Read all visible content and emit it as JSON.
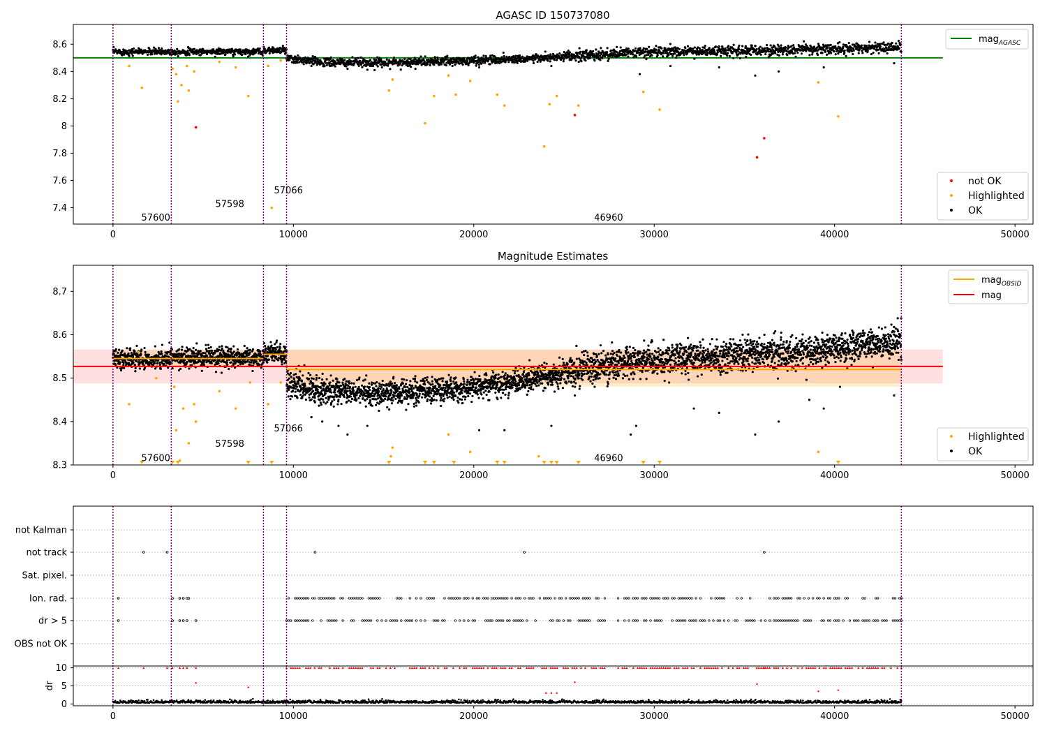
{
  "chart_data": [
    {
      "type": "scatter",
      "title": "AGASC ID 150737080",
      "xlim": [
        -2200,
        51000
      ],
      "ylim": [
        7.28,
        8.745
      ],
      "xticks": [
        0,
        10000,
        20000,
        30000,
        40000,
        50000
      ],
      "yticks": [
        7.4,
        7.6,
        7.8,
        8.0,
        8.2,
        8.4,
        8.6
      ],
      "vlines": [
        0,
        3230,
        8340,
        9620,
        43700
      ],
      "obsid_labels": [
        {
          "text": "57600",
          "x": 800,
          "y": 7.33
        },
        {
          "text": "57598",
          "x": 4900,
          "y": 7.43
        },
        {
          "text": "57066",
          "x": 8150,
          "y": 7.53
        },
        {
          "text": "46960",
          "x": 25900,
          "y": 7.33
        }
      ],
      "hline": {
        "name": "mag",
        "subscript": "AGASC",
        "value": 8.5,
        "x_range": [
          -2200,
          46000
        ],
        "color": "#008000"
      },
      "ok_band": {
        "segments": [
          {
            "x_range": [
              0,
              3230
            ],
            "center": 8.545
          },
          {
            "x_range": [
              3230,
              8340
            ],
            "center": 8.545
          },
          {
            "x_range": [
              8340,
              9620
            ],
            "center": 8.555
          },
          {
            "x_start": 9620,
            "x_end": 43700,
            "curve": [
              [
                9620,
                8.49
              ],
              [
                12000,
                8.465
              ],
              [
                15000,
                8.465
              ],
              [
                19000,
                8.475
              ],
              [
                22000,
                8.49
              ],
              [
                25000,
                8.505
              ],
              [
                27000,
                8.525
              ],
              [
                30000,
                8.545
              ],
              [
                34000,
                8.55
              ],
              [
                38000,
                8.56
              ],
              [
                41000,
                8.57
              ],
              [
                43700,
                8.58
              ]
            ]
          }
        ]
      },
      "scatter_not_ok": [
        [
          4600,
          7.99
        ],
        [
          25600,
          8.08
        ],
        [
          35700,
          7.77
        ],
        [
          36100,
          7.91
        ]
      ],
      "scatter_highlighted": [
        [
          900,
          8.44
        ],
        [
          1600,
          8.28
        ],
        [
          3300,
          8.42
        ],
        [
          3500,
          8.38
        ],
        [
          3600,
          8.18
        ],
        [
          3800,
          8.3
        ],
        [
          4100,
          8.44
        ],
        [
          4200,
          8.26
        ],
        [
          4500,
          8.4
        ],
        [
          5900,
          8.47
        ],
        [
          6800,
          8.43
        ],
        [
          7500,
          8.22
        ],
        [
          8600,
          8.44
        ],
        [
          8800,
          7.4
        ],
        [
          9300,
          8.48
        ],
        [
          15300,
          8.26
        ],
        [
          15500,
          8.34
        ],
        [
          17300,
          8.02
        ],
        [
          17800,
          8.22
        ],
        [
          18600,
          8.37
        ],
        [
          19000,
          8.23
        ],
        [
          19800,
          8.33
        ],
        [
          21300,
          8.23
        ],
        [
          21700,
          8.15
        ],
        [
          23900,
          7.85
        ],
        [
          24200,
          8.16
        ],
        [
          24600,
          8.22
        ],
        [
          25800,
          8.15
        ],
        [
          29400,
          8.25
        ],
        [
          30300,
          8.12
        ],
        [
          39100,
          8.32
        ],
        [
          40200,
          8.07
        ]
      ],
      "scatter_ok_outliers": [
        [
          11000,
          8.44
        ],
        [
          13000,
          8.42
        ],
        [
          14500,
          8.41
        ],
        [
          17800,
          8.45
        ],
        [
          20300,
          8.43
        ],
        [
          24300,
          8.44
        ],
        [
          26700,
          8.48
        ],
        [
          29200,
          8.38
        ],
        [
          30900,
          8.44
        ],
        [
          33600,
          8.43
        ],
        [
          35600,
          8.37
        ],
        [
          36900,
          8.4
        ],
        [
          39400,
          8.43
        ],
        [
          43300,
          8.46
        ]
      ],
      "legends": [
        {
          "position": "upper right",
          "entries": [
            {
              "label": "mag",
              "subscript": "AGASC",
              "kind": "line",
              "color": "#008000"
            }
          ]
        },
        {
          "position": "lower right",
          "entries": [
            {
              "label": "not OK",
              "kind": "dot",
              "color": "#ff0000"
            },
            {
              "label": "Highlighted",
              "kind": "dot",
              "color": "#ffa500"
            },
            {
              "label": "OK",
              "kind": "dot",
              "color": "#000000"
            }
          ]
        }
      ]
    },
    {
      "type": "scatter",
      "title": "Magnitude Estimates",
      "xlim": [
        -2200,
        51000
      ],
      "ylim": [
        8.3,
        8.76
      ],
      "xticks": [
        0,
        10000,
        20000,
        30000,
        40000,
        50000
      ],
      "yticks": [
        8.3,
        8.4,
        8.5,
        8.6,
        8.7
      ],
      "vlines": [
        0,
        3230,
        8340,
        9620,
        43700
      ],
      "obsid_labels": [
        {
          "text": "57600",
          "x": 800,
          "y": 8.317
        },
        {
          "text": "57598",
          "x": 4900,
          "y": 8.35
        },
        {
          "text": "57066",
          "x": 8150,
          "y": 8.385
        },
        {
          "text": "46960",
          "x": 25900,
          "y": 8.317
        }
      ],
      "mag_line": {
        "name": "mag",
        "value": 8.527,
        "band": [
          8.488,
          8.566
        ],
        "x_range": [
          -2200,
          46000
        ],
        "color": "#ff0000"
      },
      "obsid_mags": [
        {
          "x_range": [
            0,
            3230
          ],
          "value": 8.545,
          "band": [
            8.525,
            8.565
          ]
        },
        {
          "x_range": [
            3230,
            8340
          ],
          "value": 8.545,
          "band": [
            8.525,
            8.565
          ]
        },
        {
          "x_range": [
            8340,
            9620
          ],
          "value": 8.555,
          "band": [
            8.54,
            8.57
          ]
        },
        {
          "x_range": [
            9620,
            43700
          ],
          "value": 8.52,
          "band": [
            8.48,
            8.565
          ]
        }
      ],
      "ok_band": {
        "segments": [
          {
            "x_range": [
              0,
              3230
            ],
            "center": 8.545
          },
          {
            "x_range": [
              3230,
              8340
            ],
            "center": 8.547
          },
          {
            "x_range": [
              8340,
              9620
            ],
            "center": 8.557
          },
          {
            "x_start": 9620,
            "x_end": 43700,
            "curve": [
              [
                9620,
                8.485
              ],
              [
                12000,
                8.47
              ],
              [
                14000,
                8.465
              ],
              [
                17000,
                8.47
              ],
              [
                20000,
                8.48
              ],
              [
                22000,
                8.49
              ],
              [
                24000,
                8.505
              ],
              [
                26000,
                8.52
              ],
              [
                28000,
                8.535
              ],
              [
                30000,
                8.542
              ],
              [
                34000,
                8.55
              ],
              [
                38000,
                8.56
              ],
              [
                41000,
                8.572
              ],
              [
                43700,
                8.585
              ]
            ]
          }
        ]
      },
      "scatter_highlighted": [
        [
          900,
          8.44
        ],
        [
          1400,
          8.56
        ],
        [
          2400,
          8.5
        ],
        [
          3400,
          8.48
        ],
        [
          3500,
          8.38
        ],
        [
          3700,
          8.31
        ],
        [
          3900,
          8.43
        ],
        [
          4200,
          8.35
        ],
        [
          4500,
          8.44
        ],
        [
          4600,
          8.4
        ],
        [
          5900,
          8.47
        ],
        [
          6800,
          8.43
        ],
        [
          7600,
          8.49
        ],
        [
          8600,
          8.44
        ],
        [
          9300,
          8.49
        ],
        [
          15500,
          8.34
        ],
        [
          15400,
          8.32
        ],
        [
          18600,
          8.37
        ],
        [
          19800,
          8.33
        ],
        [
          23600,
          8.32
        ],
        [
          39100,
          8.33
        ]
      ],
      "clipped_highlighted_x": [
        1600,
        3300,
        3600,
        7500,
        8800,
        15300,
        17300,
        17800,
        18900,
        21300,
        21700,
        23900,
        24300,
        24600,
        25800,
        29400,
        30300,
        40200
      ],
      "scatter_ok_outliers": [
        [
          11000,
          8.41
        ],
        [
          11600,
          8.4
        ],
        [
          12500,
          8.39
        ],
        [
          13000,
          8.37
        ],
        [
          14100,
          8.39
        ],
        [
          17800,
          8.45
        ],
        [
          20300,
          8.38
        ],
        [
          21700,
          8.38
        ],
        [
          24300,
          8.39
        ],
        [
          25600,
          8.46
        ],
        [
          26700,
          8.48
        ],
        [
          28700,
          8.37
        ],
        [
          29000,
          8.39
        ],
        [
          32200,
          8.43
        ],
        [
          33600,
          8.42
        ],
        [
          35600,
          8.37
        ],
        [
          36900,
          8.4
        ],
        [
          38600,
          8.45
        ],
        [
          39400,
          8.43
        ],
        [
          40300,
          8.48
        ],
        [
          43300,
          8.46
        ]
      ],
      "legends": [
        {
          "position": "upper right",
          "entries": [
            {
              "label": "mag",
              "subscript": "OBSID",
              "kind": "line",
              "color": "#ffa500"
            },
            {
              "label": "mag",
              "kind": "line",
              "color": "#ff0000"
            }
          ]
        },
        {
          "position": "lower right",
          "entries": [
            {
              "label": "Highlighted",
              "kind": "dot",
              "color": "#ffa500"
            },
            {
              "label": "OK",
              "kind": "dot",
              "color": "#000000"
            }
          ]
        }
      ]
    },
    {
      "type": "scatter",
      "title": "",
      "xlim": [
        -2200,
        51000
      ],
      "xticks": [
        0,
        10000,
        20000,
        30000,
        40000,
        50000
      ],
      "vlines": [
        0,
        3230,
        8340,
        9620,
        43700
      ],
      "flag_rows": [
        "not Kalman",
        "not track",
        "Sat. pixel.",
        "Ion. rad.",
        "dr > 5",
        "OBS not OK"
      ],
      "flag_points": {
        "not track": [
          1700,
          3000,
          11200,
          22800,
          36100
        ],
        "Ion. rad.": [
          300,
          3300,
          3700,
          3900,
          4100,
          4200
        ],
        "dr > 5": [
          300,
          3300,
          3700,
          3900,
          4100,
          4600
        ]
      },
      "flag_ranges": {
        "Ion. rad.": [
          [
            9620,
            27300
          ],
          [
            28000,
            43700
          ]
        ],
        "dr > 5": [
          [
            9620,
            27300
          ],
          [
            28000,
            43700
          ]
        ]
      },
      "dr": {
        "ylabel": "dr",
        "yticks": [
          0,
          5,
          10
        ],
        "ylim": [
          -0.5,
          10.5
        ],
        "outliers": [
          [
            4600,
            5.8
          ],
          [
            7500,
            4.6
          ],
          [
            24000,
            3
          ],
          [
            24300,
            3
          ],
          [
            24600,
            3
          ],
          [
            25600,
            6
          ],
          [
            35700,
            5.5
          ],
          [
            39100,
            3.5
          ],
          [
            40200,
            3.8
          ]
        ],
        "cap": 10
      }
    }
  ]
}
